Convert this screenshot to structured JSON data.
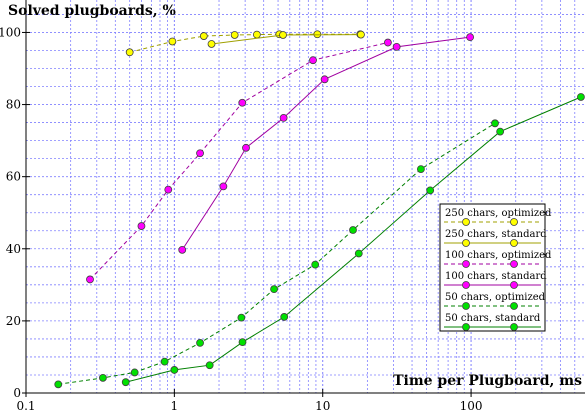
{
  "chart_data": {
    "type": "line",
    "title": "",
    "ylabel": "Solved plugboards, %",
    "xlabel": "Time per Plugboard, ms",
    "x_scale": "log",
    "xlim": [
      0.1,
      586
    ],
    "ylim": [
      0,
      109
    ],
    "x_ticks": [
      0.1,
      1,
      10,
      100
    ],
    "x_tick_labels": [
      "0.1",
      "1",
      "10",
      "100"
    ],
    "y_ticks": [
      0,
      20,
      40,
      60,
      80,
      100
    ],
    "y_tick_labels": [
      "0",
      "20",
      "40",
      "60",
      "80",
      "100"
    ],
    "grid": true,
    "legend_position": "right",
    "series": [
      {
        "name": "250 chars, optimized",
        "color": "#ffff00",
        "dash": true,
        "x": [
          0.5,
          0.97,
          1.58,
          2.55,
          3.6,
          5.1,
          9.2,
          17.9
        ],
        "y": [
          94.5,
          97.5,
          99,
          99.3,
          99.4,
          99.5,
          99.5,
          99.5
        ]
      },
      {
        "name": "250 chars, standard",
        "color": "#ffff00",
        "dash": false,
        "x": [
          1.78,
          5.4,
          18.1
        ],
        "y": [
          96.8,
          99.3,
          99.4
        ]
      },
      {
        "name": "100 chars, optimized",
        "color": "#ff00ff",
        "dash": true,
        "x": [
          0.27,
          0.6,
          0.91,
          1.49,
          2.87,
          8.6,
          27.5
        ],
        "y": [
          31.5,
          46.3,
          56.4,
          66.5,
          80.5,
          92.3,
          97.2
        ]
      },
      {
        "name": "100 chars, standard",
        "color": "#ff00ff",
        "dash": false,
        "x": [
          1.13,
          2.14,
          3.04,
          5.45,
          10.3,
          31.5,
          98.5
        ],
        "y": [
          39.7,
          57.3,
          68.0,
          76.3,
          87.0,
          96.0,
          98.7
        ]
      },
      {
        "name": "50 chars, optimized",
        "color": "#00e000",
        "dash": true,
        "x": [
          0.165,
          0.33,
          0.54,
          0.86,
          1.49,
          2.83,
          4.7,
          8.9,
          16.0,
          45.9,
          145
        ],
        "y": [
          2.4,
          4.2,
          5.7,
          8.7,
          13.9,
          20.9,
          28.8,
          35.6,
          45.2,
          62.1,
          74.8
        ]
      },
      {
        "name": "50 chars, standard",
        "color": "#00e000",
        "dash": false,
        "x": [
          0.47,
          1.0,
          1.73,
          2.88,
          5.5,
          17.5,
          53.0,
          157,
          550
        ],
        "y": [
          3.0,
          6.4,
          7.7,
          14.1,
          21.1,
          38.7,
          56.2,
          72.5,
          82.1
        ]
      }
    ]
  }
}
